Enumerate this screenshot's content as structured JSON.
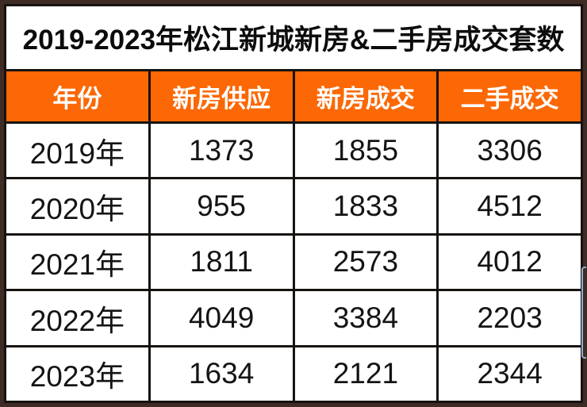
{
  "chart_data": {
    "type": "table",
    "title": "2019-2023年松江新城新房&二手房成交套数",
    "columns": [
      "年份",
      "新房供应",
      "新房成交",
      "二手成交"
    ],
    "rows": [
      [
        "2019年",
        1373,
        1855,
        3306
      ],
      [
        "2020年",
        955,
        1833,
        4512
      ],
      [
        "2021年",
        1811,
        2573,
        4012
      ],
      [
        "2022年",
        4049,
        3384,
        2203
      ],
      [
        "2023年",
        1634,
        2121,
        2344
      ]
    ],
    "categories": [
      "2019年",
      "2020年",
      "2021年",
      "2022年",
      "2023年"
    ],
    "series": [
      {
        "name": "新房供应",
        "values": [
          1373,
          955,
          1811,
          4049,
          1634
        ]
      },
      {
        "name": "新房成交",
        "values": [
          1855,
          1833,
          2573,
          3384,
          2121
        ]
      },
      {
        "name": "二手成交",
        "values": [
          3306,
          4512,
          4012,
          2203,
          2344
        ]
      }
    ],
    "legend_position": "none",
    "grid": true
  },
  "colors": {
    "header_orange": "#FB6805",
    "frame_brown": "#3E2C25",
    "grid_line": "#171310",
    "title_text": "#0C0C0C",
    "header_text": "#FFFFFF",
    "body_text": "#141414",
    "artifact_blue": "#9FBCEA"
  }
}
